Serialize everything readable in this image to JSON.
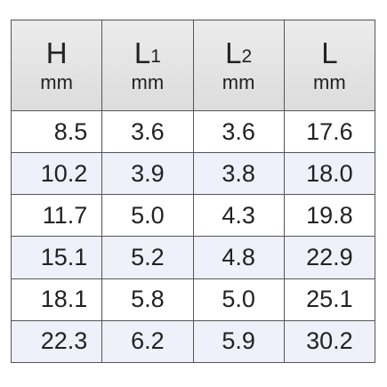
{
  "table": {
    "header": [
      {
        "symbol": "H",
        "unit": "mm"
      },
      {
        "symbol": "L",
        "sub": "1",
        "unit": "mm"
      },
      {
        "symbol": "L",
        "sub": "2",
        "unit": "mm"
      },
      {
        "symbol": "L",
        "unit": "mm"
      }
    ],
    "rows": [
      [
        "8.5",
        "3.6",
        "3.6",
        "17.6"
      ],
      [
        "10.2",
        "3.9",
        "3.8",
        "18.0"
      ],
      [
        "11.7",
        "5.0",
        "4.3",
        "19.8"
      ],
      [
        "15.1",
        "5.2",
        "4.8",
        "22.9"
      ],
      [
        "18.1",
        "5.8",
        "5.0",
        "25.1"
      ],
      [
        "22.3",
        "6.2",
        "5.9",
        "30.2"
      ]
    ]
  }
}
